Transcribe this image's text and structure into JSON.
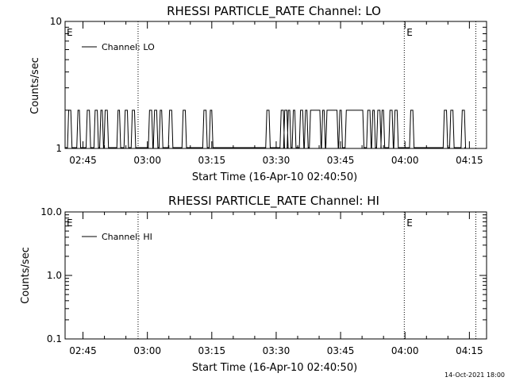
{
  "chart_data": [
    {
      "type": "line",
      "title": "RHESSI PARTICLE_RATE Channel: LO",
      "xlabel": "Start Time (16-Apr-10 02:40:50)",
      "ylabel": "Counts/sec",
      "yscale": "log",
      "ylim": [
        1,
        10
      ],
      "yticks": [
        1,
        10
      ],
      "ytick_labels": [
        "1",
        "10"
      ],
      "xlim": [
        "02:40:50",
        "04:19:00"
      ],
      "xticks": [
        "02:45",
        "03:00",
        "03:15",
        "03:30",
        "03:45",
        "04:00",
        "04:15"
      ],
      "grid": false,
      "legend": "top-left",
      "series": [
        {
          "name": "Channel: LO",
          "segments": [
            [
              "02:41:40",
              "02:42:10"
            ],
            [
              "02:43:50",
              "02:44:10"
            ],
            [
              "02:46:00",
              "02:46:30"
            ],
            [
              "02:47:50",
              "02:48:20"
            ],
            [
              "02:49:10",
              "02:49:30"
            ],
            [
              "02:50:10",
              "02:50:40"
            ],
            [
              "02:53:10",
              "02:53:30"
            ],
            [
              "02:54:50",
              "02:55:20"
            ],
            [
              "02:56:30",
              "02:57:00"
            ],
            [
              "03:00:30",
              "03:01:00"
            ],
            [
              "03:01:40",
              "03:02:10"
            ],
            [
              "03:03:00",
              "03:03:20"
            ],
            [
              "03:05:10",
              "03:05:40"
            ],
            [
              "03:08:20",
              "03:08:50"
            ],
            [
              "03:13:10",
              "03:13:40"
            ],
            [
              "03:14:40",
              "03:15:00"
            ],
            [
              "03:27:50",
              "03:28:20"
            ],
            [
              "03:31:10",
              "03:31:40"
            ],
            [
              "03:32:00",
              "03:32:30"
            ],
            [
              "03:32:50",
              "03:33:10"
            ],
            [
              "03:34:00",
              "03:34:20"
            ],
            [
              "03:35:40",
              "03:36:10"
            ],
            [
              "03:36:50",
              "03:37:10"
            ],
            [
              "03:38:00",
              "03:40:10"
            ],
            [
              "03:40:50",
              "03:41:10"
            ],
            [
              "03:41:50",
              "03:44:10"
            ],
            [
              "03:44:50",
              "03:45:10"
            ],
            [
              "03:46:20",
              "03:50:10"
            ],
            [
              "03:51:20",
              "03:51:50"
            ],
            [
              "03:52:30",
              "03:52:50"
            ],
            [
              "03:53:40",
              "03:54:10"
            ],
            [
              "03:54:40",
              "03:55:00"
            ],
            [
              "03:56:30",
              "03:57:00"
            ],
            [
              "03:57:40",
              "03:58:10"
            ],
            [
              "04:01:20",
              "04:01:50"
            ],
            [
              "04:09:10",
              "04:09:40"
            ],
            [
              "04:10:40",
              "04:11:10"
            ],
            [
              "04:13:20",
              "04:13:50"
            ]
          ],
          "values_in": [
            1,
            2
          ]
        }
      ],
      "vlines": [
        "02:57:50",
        "03:59:50",
        "04:16:30"
      ],
      "markers": [
        {
          "label": "E",
          "x": "02:40:50"
        },
        {
          "label": "E",
          "x": "04:00:00"
        }
      ]
    },
    {
      "type": "line",
      "title": "RHESSI PARTICLE_RATE Channel: HI",
      "xlabel": "Start Time (16-Apr-10 02:40:50)",
      "ylabel": "Counts/sec",
      "yscale": "log",
      "ylim": [
        0.1,
        10
      ],
      "yticks": [
        0.1,
        1,
        10
      ],
      "ytick_labels": [
        "0.1",
        "1.0",
        "10.0"
      ],
      "xlim": [
        "02:40:50",
        "04:19:00"
      ],
      "xticks": [
        "02:45",
        "03:00",
        "03:15",
        "03:30",
        "03:45",
        "04:00",
        "04:15"
      ],
      "grid": false,
      "legend": "top-left",
      "series": [
        {
          "name": "Channel: HI",
          "segments": [],
          "values_in": []
        }
      ],
      "vlines": [
        "02:57:50",
        "03:59:50",
        "04:16:30"
      ],
      "markers": [
        {
          "label": "E",
          "x": "02:40:50"
        },
        {
          "label": "E",
          "x": "04:00:00"
        }
      ]
    }
  ],
  "footer": {
    "timestamp": "14-Oct-2021 18:00"
  }
}
